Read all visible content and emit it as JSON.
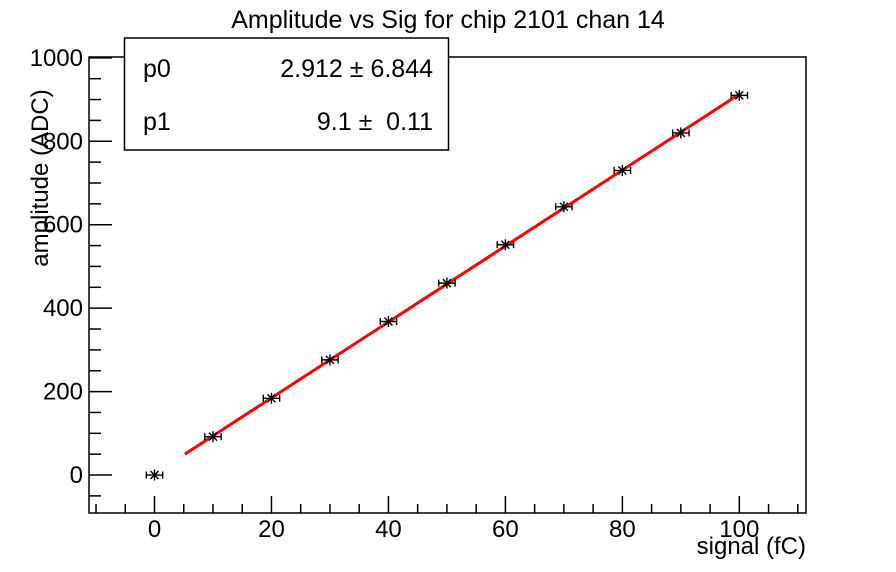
{
  "title": "Amplitude vs Sig for chip 2101 chan 14",
  "stats_box": {
    "rows": [
      {
        "param": "p0",
        "value": "2.912 ± 6.844"
      },
      {
        "param": "p1",
        "value": "9.1 ±  0.11"
      }
    ]
  },
  "colors": {
    "background": "#ffffff",
    "axis": "#000000",
    "text": "#000000",
    "marker": "#000000",
    "fit_line": "#ff0000",
    "stats_fill": "#ffffff",
    "stats_border": "#000000"
  },
  "chart_data": {
    "type": "scatter",
    "title": "Amplitude vs Sig for chip 2101 chan 14",
    "xlabel": "signal (fC)",
    "ylabel": "amplitude (ADC)",
    "x": [
      0,
      10,
      20,
      30,
      40,
      50,
      60,
      70,
      80,
      90,
      100
    ],
    "y": [
      0,
      92,
      184,
      276,
      368,
      460,
      552,
      643,
      730,
      820,
      910
    ],
    "x_error": 1.4,
    "xlim": [
      -11.2,
      111.4
    ],
    "ylim": [
      -91,
      1002
    ],
    "x_major_ticks": [
      0,
      20,
      40,
      60,
      80,
      100
    ],
    "y_major_ticks": [
      0,
      200,
      400,
      600,
      800,
      1000
    ],
    "x_minor_step": 5,
    "y_minor_step": 50,
    "x_major_step": 20,
    "y_major_step": 200,
    "grid": false,
    "legend_position": "none",
    "marker_style": "asterisk",
    "fit": {
      "type": "linear",
      "p0": 2.912,
      "p0_err": 6.844,
      "p1": 9.1,
      "p1_err": 0.11,
      "range": [
        5.2,
        100
      ]
    }
  }
}
